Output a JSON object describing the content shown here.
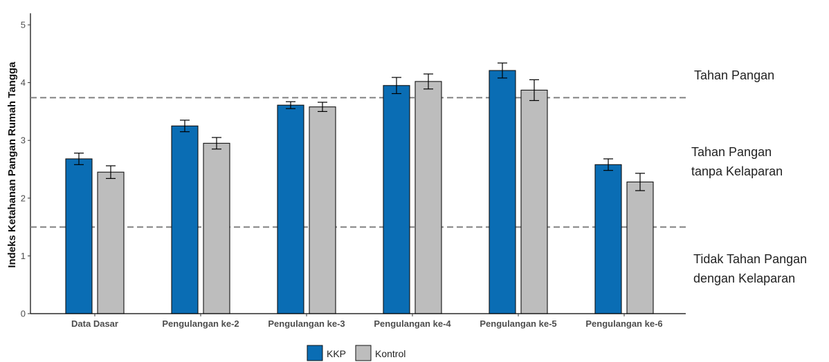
{
  "chart_data": {
    "type": "bar",
    "ylabel": "Indeks Ketahanan Pangan Rumah Tangga",
    "xlabel": "",
    "ylim": [
      0,
      5.2
    ],
    "yticks": [
      0,
      1,
      2,
      3,
      4,
      5
    ],
    "categories": [
      "Data Dasar",
      "Pengulangan ke-2",
      "Pengulangan ke-3",
      "Pengulangan ke-4",
      "Pengulangan ke-5",
      "Pengulangan ke-6"
    ],
    "series": [
      {
        "name": "KKP",
        "color": "#0a6db4",
        "values": [
          2.68,
          3.25,
          3.61,
          3.95,
          4.21,
          2.58
        ],
        "errors": [
          0.1,
          0.1,
          0.06,
          0.14,
          0.13,
          0.1
        ]
      },
      {
        "name": "Kontrol",
        "color": "#bdbdbd",
        "values": [
          2.45,
          2.95,
          3.58,
          4.02,
          3.87,
          2.28
        ],
        "errors": [
          0.11,
          0.1,
          0.08,
          0.13,
          0.18,
          0.15
        ]
      }
    ],
    "thresholds": [
      3.74,
      1.5
    ],
    "zones": {
      "top": [
        "Tahan Pangan"
      ],
      "middle": [
        "Tahan Pangan",
        "tanpa Kelaparan"
      ],
      "bottom": [
        "Tidak Tahan Pangan",
        "dengan Kelaparan"
      ]
    },
    "legend": {
      "position": "bottom"
    },
    "grid": false
  }
}
